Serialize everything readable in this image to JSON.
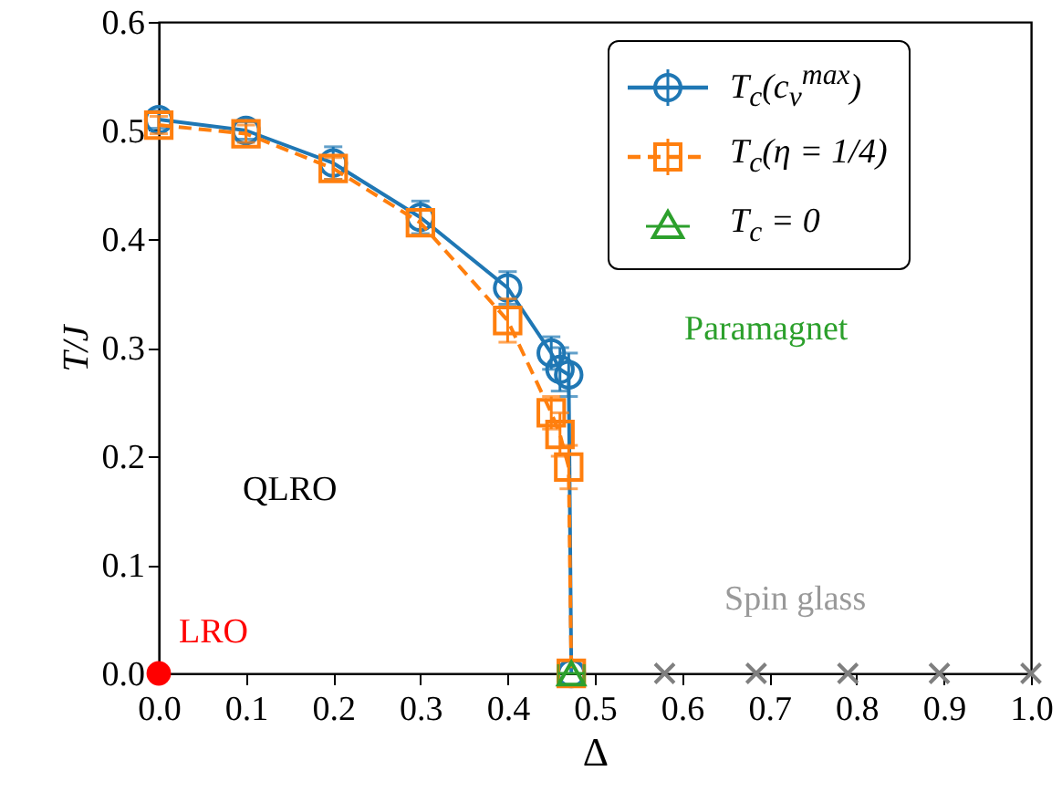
{
  "chart_data": {
    "type": "line",
    "xlabel": "Δ",
    "ylabel": "T/J",
    "xlim": [
      0,
      1
    ],
    "ylim": [
      0,
      0.6
    ],
    "xticks": [
      {
        "value": 0,
        "label": "0.0"
      },
      {
        "value": 0.1,
        "label": "0.1"
      },
      {
        "value": 0.2,
        "label": "0.2"
      },
      {
        "value": 0.3,
        "label": "0.3"
      },
      {
        "value": 0.4,
        "label": "0.4"
      },
      {
        "value": 0.5,
        "label": "0.5"
      },
      {
        "value": 0.6,
        "label": "0.6"
      },
      {
        "value": 0.7,
        "label": "0.7"
      },
      {
        "value": 0.8,
        "label": "0.8"
      },
      {
        "value": 0.9,
        "label": "0.9"
      },
      {
        "value": 1,
        "label": "1.0"
      }
    ],
    "yticks": [
      {
        "value": 0,
        "label": "0.0"
      },
      0.1,
      0.2,
      0.3,
      0.4,
      0.5,
      0.6
    ],
    "grid": false,
    "legend": "top right",
    "series": [
      {
        "name": "T$_{c}$(c$_{v}$$^{max}$)",
        "type": "line",
        "marker": "circle",
        "line_style": "solid",
        "color": "#1f77b4",
        "x": [
          0,
          0.1,
          0.2,
          0.3,
          0.4,
          0.45,
          0.46,
          0.47,
          0.473
        ],
        "values": [
          0.51,
          0.5,
          0.47,
          0.42,
          0.355,
          0.295,
          0.28,
          0.275,
          0
        ],
        "errors": [
          0.008,
          0.008,
          0.015,
          0.015,
          0.015,
          0.015,
          0.02,
          0.02,
          null
        ]
      },
      {
        "name": "T$_{c}$(η = 1/4)",
        "type": "line",
        "marker": "square",
        "line_style": "dashed",
        "color": "#ff7f0e",
        "x": [
          0,
          0.1,
          0.2,
          0.3,
          0.4,
          0.45,
          0.46,
          0.47,
          0.473
        ],
        "values": [
          0.505,
          0.497,
          0.465,
          0.415,
          0.325,
          0.24,
          0.22,
          0.19,
          0
        ],
        "errors": [
          0.008,
          0.008,
          0.01,
          0.012,
          0.02,
          0.015,
          0.02,
          0.02,
          null
        ]
      },
      {
        "name": "T$_{c}$ = 0",
        "type": "scatter",
        "marker": "triangle",
        "color": "#2ca02c",
        "x": [
          0.473
        ],
        "values": [
          0
        ],
        "xerrors": [
          0.015
        ]
      },
      {
        "type": "scatter",
        "marker": "cross",
        "color": "#7f7f7f",
        "x": [
          0.58,
          0.685,
          0.79,
          0.895,
          1.0
        ],
        "values": [
          0,
          0,
          0,
          0,
          0
        ]
      },
      {
        "type": "scatter",
        "marker": "circle",
        "color": "#ff0000",
        "x": [
          0
        ],
        "values": [
          0
        ]
      }
    ],
    "annotations": [
      "LRO",
      "QLRO",
      "Paramagnet",
      "Spin glass"
    ]
  }
}
